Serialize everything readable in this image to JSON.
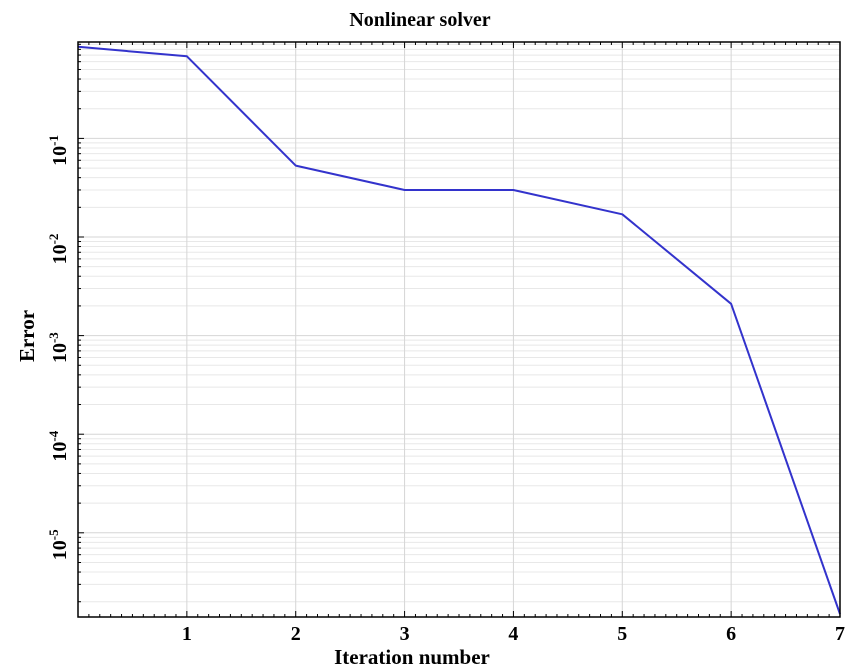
{
  "chart_data": {
    "type": "line",
    "title": "Nonlinear solver",
    "xlabel": "Iteration number",
    "ylabel": "Error",
    "yscale": "log",
    "xlim": [
      0,
      7
    ],
    "ylim": [
      1.4e-06,
      0.95
    ],
    "grid": true,
    "x_ticks": [
      "1",
      "2",
      "3",
      "4",
      "5",
      "6",
      "7"
    ],
    "y_ticks": [
      {
        "value": 0.1,
        "base": "10",
        "exp": "-1"
      },
      {
        "value": 0.01,
        "base": "10",
        "exp": "-2"
      },
      {
        "value": 0.001,
        "base": "10",
        "exp": "-3"
      },
      {
        "value": 0.0001,
        "base": "10",
        "exp": "-4"
      },
      {
        "value": 1e-05,
        "base": "10",
        "exp": "-5"
      }
    ],
    "series": [
      {
        "color": "#3333cc",
        "x": [
          0,
          1,
          2,
          3,
          4,
          5,
          6,
          7
        ],
        "y": [
          0.85,
          0.68,
          0.053,
          0.03,
          0.03,
          0.017,
          0.0021,
          1.5e-06
        ]
      }
    ]
  }
}
